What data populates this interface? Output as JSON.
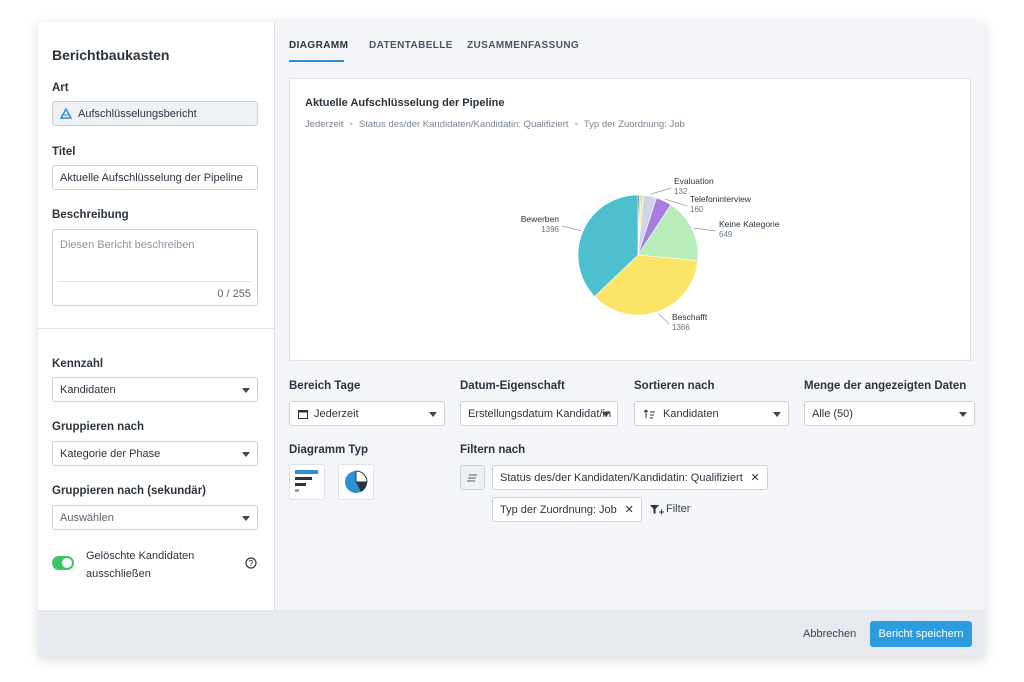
{
  "sidebar": {
    "title": "Berichtbaukasten",
    "art_label": "Art",
    "art_value": "Aufschlüsselungsbericht",
    "titel_label": "Titel",
    "titel_value": "Aktuelle Aufschlüsselung der Pipeline",
    "beschreibung_label": "Beschreibung",
    "beschreibung_placeholder": "Diesen Bericht beschreiben",
    "char_count": "0 / 255",
    "kennzahl_label": "Kennzahl",
    "kennzahl_value": "Kandidaten",
    "gruppieren_label": "Gruppieren nach",
    "gruppieren_value": "Kategorie der Phase",
    "gruppieren2_label": "Gruppieren nach (sekundär)",
    "gruppieren2_value": "Auswählen",
    "toggle_label": "Gelöschte Kandidaten ausschließen"
  },
  "tabs": [
    "DIAGRAMM",
    "DATENTABELLE",
    "ZUSAMMENFASSUNG"
  ],
  "chart_data": {
    "type": "pie",
    "title": "Aktuelle Aufschlüsselung der Pipeline",
    "subtitle": [
      "Jederzeit",
      "Status des/der Kandidaten/Kandidatin: Qualifiziert",
      "Typ der Zuordnung: Job"
    ],
    "categories": [
      null,
      null,
      null,
      "Evaluation",
      "Telefoninterview",
      "Keine Kategorie",
      "Beschafft",
      "Bewerben"
    ],
    "values": [
      15,
      15,
      25,
      132,
      160,
      649,
      1366,
      1396
    ],
    "colors": [
      "#2f5d62",
      "#8fd19e",
      "#f6e27a",
      "#cdd6e6",
      "#a77de0",
      "#b8ecb8",
      "#fbe468",
      "#4ebfcf"
    ]
  },
  "controls": {
    "bereich_label": "Bereich Tage",
    "bereich_value": "Jederzeit",
    "datum_label": "Datum-Eigenschaft",
    "datum_value": "Erstellungsdatum Kandidat/in",
    "sort_label": "Sortieren nach",
    "sort_value": "Kandidaten",
    "menge_label": "Menge der angezeigten Daten",
    "menge_value": "Alle (50)",
    "diagramm_typ_label": "Diagramm Typ",
    "filter_label": "Filtern nach",
    "chips": [
      "Status des/der Kandidaten/Kandidatin: Qualifiziert",
      "Typ der Zuordnung: Job"
    ],
    "filter_button": "Filter"
  },
  "footer": {
    "cancel": "Abbrechen",
    "save": "Bericht speichern"
  }
}
